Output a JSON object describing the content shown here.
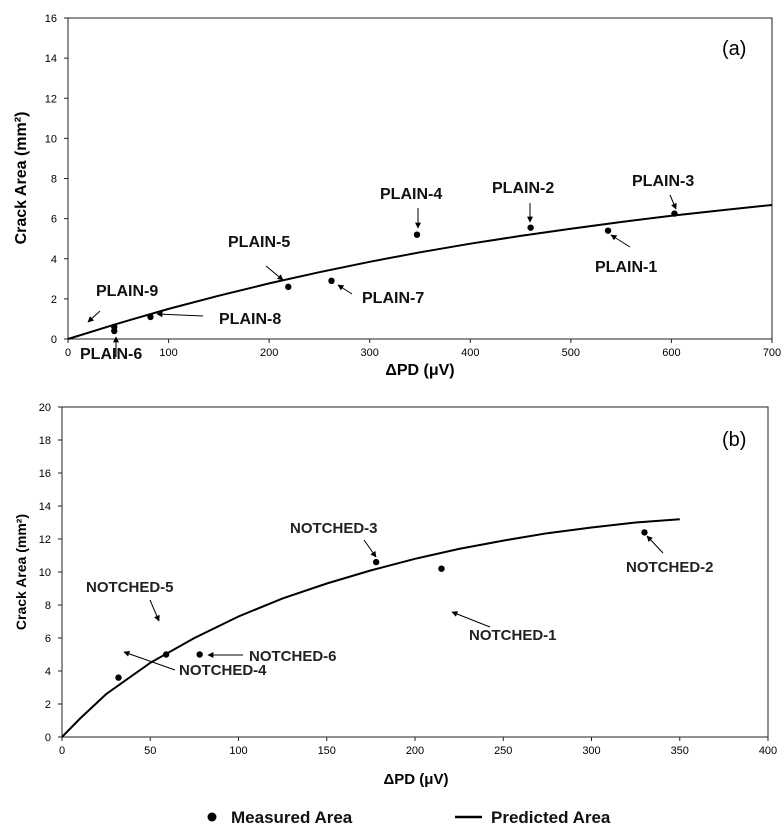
{
  "legend": {
    "measured": "Measured Area",
    "predicted": "Predicted Area"
  },
  "chart_data": [
    {
      "type": "scatter",
      "panel_label": "(a)",
      "xlabel": "ΔPD (μV)",
      "ylabel": "Crack Area (mm²)",
      "xlim": [
        0,
        700
      ],
      "ylim": [
        0,
        16
      ],
      "xticks": [
        0,
        100,
        200,
        300,
        400,
        500,
        600,
        700
      ],
      "yticks": [
        0,
        2,
        4,
        6,
        8,
        10,
        12,
        14,
        16
      ],
      "grid": false,
      "legend_position": "bottom",
      "series": [
        {
          "name": "Measured Area",
          "points": [
            {
              "label": "PLAIN-1",
              "x": 537,
              "y": 5.4
            },
            {
              "label": "PLAIN-2",
              "x": 460,
              "y": 5.55
            },
            {
              "label": "PLAIN-3",
              "x": 603,
              "y": 6.25
            },
            {
              "label": "PLAIN-4",
              "x": 347,
              "y": 5.2
            },
            {
              "label": "PLAIN-5",
              "x": 219,
              "y": 2.6
            },
            {
              "label": "PLAIN-6",
              "x": 46,
              "y": 0.4
            },
            {
              "label": "PLAIN-7",
              "x": 262,
              "y": 2.9
            },
            {
              "label": "PLAIN-8",
              "x": 82,
              "y": 1.1
            },
            {
              "label": "PLAIN-9",
              "x": 46,
              "y": 0.6
            }
          ]
        },
        {
          "name": "Predicted Area",
          "x": [
            0,
            50,
            100,
            150,
            200,
            250,
            300,
            350,
            400,
            450,
            500,
            550,
            600,
            650,
            700
          ],
          "values": [
            0,
            0.78,
            1.5,
            2.16,
            2.77,
            3.33,
            3.85,
            4.32,
            4.75,
            5.14,
            5.5,
            5.83,
            6.14,
            6.42,
            6.68
          ]
        }
      ]
    },
    {
      "type": "scatter",
      "panel_label": "(b)",
      "xlabel": "ΔPD (μV)",
      "ylabel": "Crack Area (mm²)",
      "xlim": [
        0,
        400
      ],
      "ylim": [
        0,
        20
      ],
      "xticks": [
        0,
        50,
        100,
        150,
        200,
        250,
        300,
        350,
        400
      ],
      "yticks": [
        0,
        2,
        4,
        6,
        8,
        10,
        12,
        14,
        16,
        18,
        20
      ],
      "grid": false,
      "legend_position": "bottom",
      "series": [
        {
          "name": "Measured Area",
          "points": [
            {
              "label": "NOTCHED-1",
              "x": 215,
              "y": 10.2
            },
            {
              "label": "NOTCHED-2",
              "x": 330,
              "y": 12.4
            },
            {
              "label": "NOTCHED-3",
              "x": 178,
              "y": 10.6
            },
            {
              "label": "NOTCHED-4",
              "x": 32,
              "y": 3.6
            },
            {
              "label": "NOTCHED-5",
              "x": 59,
              "y": 5.0
            },
            {
              "label": "NOTCHED-6",
              "x": 78,
              "y": 5.0
            }
          ]
        },
        {
          "name": "Predicted Area",
          "x": [
            0,
            10,
            25,
            50,
            75,
            100,
            125,
            150,
            175,
            200,
            225,
            250,
            275,
            300,
            325,
            350
          ],
          "values": [
            0,
            1.1,
            2.6,
            4.5,
            6.0,
            7.3,
            8.4,
            9.3,
            10.1,
            10.8,
            11.4,
            11.9,
            12.35,
            12.7,
            13.0,
            13.2
          ]
        }
      ]
    }
  ]
}
